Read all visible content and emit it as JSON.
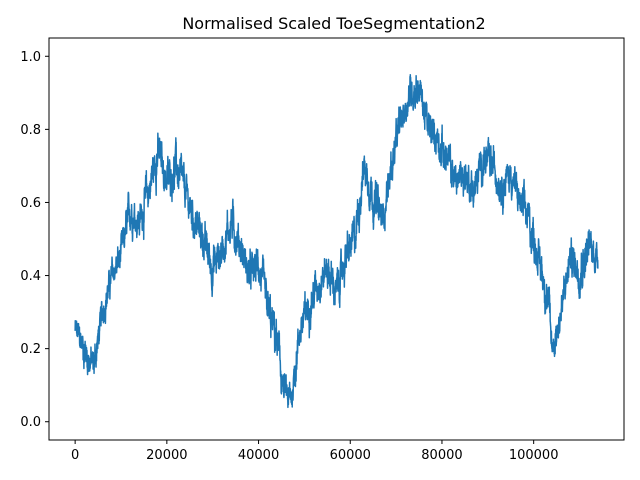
{
  "chart_data": {
    "type": "line",
    "title": "Normalised Scaled ToeSegmentation2",
    "xlabel": "",
    "ylabel": "",
    "xlim": [
      -5700,
      119700
    ],
    "ylim": [
      -0.05,
      1.05
    ],
    "xticks": [
      0,
      20000,
      40000,
      60000,
      80000,
      100000
    ],
    "xtick_labels": [
      "0",
      "20000",
      "40000",
      "60000",
      "80000",
      "100000"
    ],
    "yticks": [
      0.0,
      0.2,
      0.4,
      0.6,
      0.8,
      1.0
    ],
    "ytick_labels": [
      "0.0",
      "0.2",
      "0.4",
      "0.6",
      "0.8",
      "1.0"
    ],
    "grid": false,
    "legend": "none",
    "line_color": "#1f77b4",
    "series": [
      {
        "x": [
          0,
          2000,
          4000,
          6000,
          8000,
          10000,
          12000,
          14000,
          16000,
          18000,
          20000,
          22000,
          24000,
          26000,
          28000,
          30000,
          32000,
          34000,
          36000,
          38000,
          40000,
          42000,
          44000,
          45500,
          47000,
          49000,
          51000,
          53000,
          55000,
          57000,
          59000,
          61000,
          63000,
          65000,
          67000,
          69000,
          71000,
          73000,
          75000,
          77000,
          79000,
          81000,
          83000,
          85000,
          87000,
          89000,
          91000,
          93000,
          95000,
          97000,
          99000,
          101000,
          103000,
          104000,
          106000,
          108000,
          110000,
          112000,
          114000
        ],
        "values": [
          0.25,
          0.2,
          0.15,
          0.3,
          0.4,
          0.45,
          0.58,
          0.55,
          0.63,
          0.74,
          0.66,
          0.7,
          0.63,
          0.55,
          0.5,
          0.42,
          0.47,
          0.55,
          0.48,
          0.4,
          0.43,
          0.3,
          0.22,
          0.08,
          0.05,
          0.25,
          0.32,
          0.38,
          0.42,
          0.35,
          0.45,
          0.5,
          0.7,
          0.62,
          0.55,
          0.7,
          0.82,
          0.9,
          0.92,
          0.8,
          0.78,
          0.72,
          0.66,
          0.68,
          0.63,
          0.72,
          0.7,
          0.65,
          0.68,
          0.6,
          0.55,
          0.45,
          0.35,
          0.2,
          0.3,
          0.45,
          0.42,
          0.48,
          0.45
        ],
        "amplitude": [
          0.04,
          0.05,
          0.05,
          0.04,
          0.04,
          0.05,
          0.05,
          0.05,
          0.06,
          0.06,
          0.05,
          0.06,
          0.05,
          0.05,
          0.05,
          0.06,
          0.05,
          0.06,
          0.05,
          0.05,
          0.05,
          0.06,
          0.06,
          0.05,
          0.05,
          0.05,
          0.05,
          0.05,
          0.05,
          0.05,
          0.05,
          0.06,
          0.05,
          0.06,
          0.05,
          0.05,
          0.05,
          0.05,
          0.05,
          0.05,
          0.05,
          0.05,
          0.05,
          0.05,
          0.05,
          0.05,
          0.05,
          0.05,
          0.05,
          0.05,
          0.06,
          0.05,
          0.06,
          0.05,
          0.05,
          0.05,
          0.06,
          0.06,
          0.04
        ]
      }
    ]
  }
}
